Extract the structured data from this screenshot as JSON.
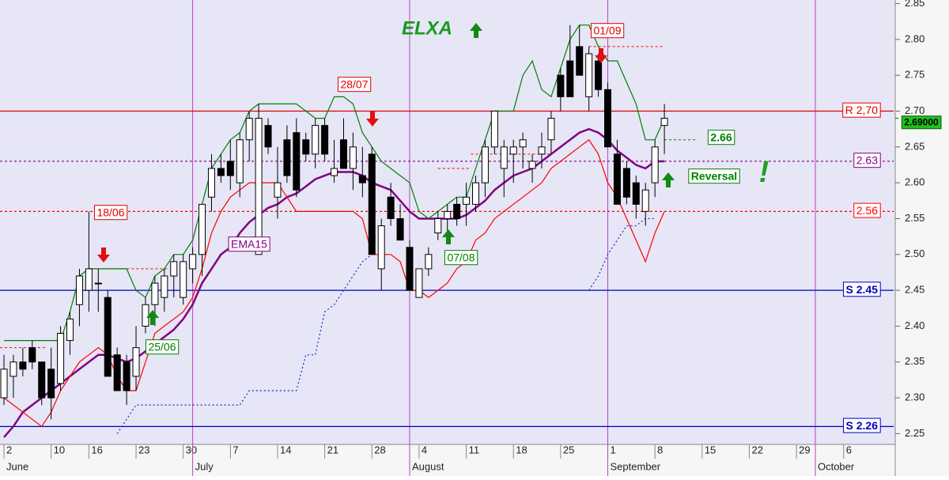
{
  "chart_data": {
    "type": "candlestick",
    "title": "ELXA",
    "xlim": [
      -0.42,
      94.3
    ],
    "ylim": [
      2.235,
      2.855
    ],
    "yticks": [
      2.25,
      {
        "value": 2.3,
        "label": "2.30"
      },
      2.35,
      {
        "value": 2.4,
        "label": "2.40"
      },
      2.45,
      {
        "value": 2.5,
        "label": "2.50"
      },
      2.55,
      {
        "value": 2.6,
        "label": "2.60"
      },
      2.65,
      {
        "value": 2.7,
        "label": "2.70"
      },
      2.75,
      {
        "value": 2.8,
        "label": "2.80"
      },
      2.85
    ],
    "xticks": [
      {
        "value": 0,
        "label": "2"
      },
      {
        "value": 5,
        "label": "10"
      },
      {
        "value": 9,
        "label": "16"
      },
      {
        "value": 14,
        "label": "23"
      },
      {
        "value": 19,
        "label": "30"
      },
      {
        "value": 24,
        "label": "7"
      },
      {
        "value": 29,
        "label": "14"
      },
      {
        "value": 34,
        "label": "21"
      },
      {
        "value": 39,
        "label": "28"
      },
      {
        "value": 44,
        "label": "4"
      },
      {
        "value": 49,
        "label": "11"
      },
      {
        "value": 54,
        "label": "18"
      },
      {
        "value": 59,
        "label": "25"
      },
      {
        "value": 64,
        "label": "1"
      },
      {
        "value": 69,
        "label": "8"
      },
      {
        "value": 74,
        "label": "15"
      },
      {
        "value": 79,
        "label": "22"
      },
      {
        "value": 84,
        "label": "29"
      },
      {
        "value": 89,
        "label": "6"
      }
    ],
    "months": [
      {
        "value": 0,
        "label": "June"
      },
      {
        "value": 20,
        "label": "July"
      },
      {
        "value": 43,
        "label": "August"
      },
      {
        "value": 64,
        "label": "September"
      },
      {
        "value": 86,
        "label": "October"
      }
    ],
    "open": [
      2.3,
      2.33,
      2.35,
      2.37,
      2.35,
      2.34,
      2.32,
      2.38,
      2.43,
      2.45,
      2.46,
      2.44,
      2.36,
      2.35,
      2.33,
      2.4,
      2.43,
      2.44,
      2.47,
      2.44,
      2.48,
      2.5,
      2.58,
      2.62,
      2.63,
      2.6,
      2.66,
      2.5,
      2.68,
      2.58,
      2.66,
      2.67,
      2.66,
      2.64,
      2.68,
      2.61,
      2.66,
      2.62,
      2.61,
      2.64,
      2.48,
      2.58,
      2.55,
      2.51,
      2.44,
      2.48,
      2.53,
      2.55,
      2.57,
      2.57,
      2.57,
      2.6,
      2.65,
      2.62,
      2.64,
      2.65,
      2.62,
      2.64,
      2.66,
      2.75,
      2.77,
      2.79,
      2.72,
      2.77,
      2.73,
      2.64,
      2.62,
      2.6,
      2.56,
      2.6,
      2.68
    ],
    "high": [
      2.36,
      2.36,
      2.37,
      2.38,
      2.35,
      2.37,
      2.4,
      2.42,
      2.48,
      2.56,
      2.48,
      2.45,
      2.37,
      2.36,
      2.4,
      2.44,
      2.47,
      2.48,
      2.5,
      2.5,
      2.51,
      2.57,
      2.64,
      2.64,
      2.66,
      2.67,
      2.7,
      2.71,
      2.69,
      2.65,
      2.68,
      2.69,
      2.67,
      2.69,
      2.69,
      2.66,
      2.69,
      2.67,
      2.65,
      2.65,
      2.55,
      2.6,
      2.57,
      2.52,
      2.48,
      2.51,
      2.56,
      2.57,
      2.58,
      2.6,
      2.61,
      2.66,
      2.7,
      2.66,
      2.66,
      2.67,
      2.64,
      2.67,
      2.7,
      2.76,
      2.82,
      2.82,
      2.79,
      2.78,
      2.74,
      2.66,
      2.63,
      2.61,
      2.6,
      2.66,
      2.71
    ],
    "low": [
      2.29,
      2.3,
      2.33,
      2.34,
      2.29,
      2.27,
      2.31,
      2.36,
      2.4,
      2.42,
      2.42,
      2.33,
      2.31,
      2.29,
      2.31,
      2.39,
      2.4,
      2.42,
      2.44,
      2.43,
      2.46,
      2.47,
      2.56,
      2.6,
      2.59,
      2.58,
      2.63,
      2.5,
      2.64,
      2.55,
      2.6,
      2.58,
      2.63,
      2.62,
      2.63,
      2.6,
      2.62,
      2.59,
      2.58,
      2.5,
      2.45,
      2.54,
      2.52,
      2.45,
      2.44,
      2.47,
      2.52,
      2.53,
      2.54,
      2.54,
      2.56,
      2.58,
      2.64,
      2.58,
      2.6,
      2.62,
      2.6,
      2.62,
      2.64,
      2.7,
      2.72,
      2.75,
      2.7,
      2.72,
      2.65,
      2.57,
      2.57,
      2.55,
      2.54,
      2.58,
      2.64
    ],
    "close": [
      2.34,
      2.35,
      2.34,
      2.35,
      2.3,
      2.3,
      2.39,
      2.41,
      2.47,
      2.48,
      2.46,
      2.33,
      2.31,
      2.31,
      2.37,
      2.43,
      2.46,
      2.47,
      2.49,
      2.49,
      2.5,
      2.57,
      2.62,
      2.61,
      2.61,
      2.66,
      2.69,
      2.69,
      2.65,
      2.6,
      2.61,
      2.59,
      2.64,
      2.68,
      2.64,
      2.62,
      2.62,
      2.65,
      2.6,
      2.5,
      2.54,
      2.55,
      2.52,
      2.45,
      2.48,
      2.5,
      2.55,
      2.56,
      2.55,
      2.58,
      2.6,
      2.65,
      2.7,
      2.65,
      2.65,
      2.66,
      2.63,
      2.65,
      2.69,
      2.72,
      2.72,
      2.75,
      2.78,
      2.73,
      2.65,
      2.57,
      2.58,
      2.57,
      2.59,
      2.65,
      2.69
    ],
    "series": [
      {
        "name": "EMA15",
        "color": "#800080",
        "values": [
          2.245,
          2.26,
          2.28,
          2.29,
          2.3,
          2.31,
          2.32,
          2.33,
          2.34,
          2.35,
          2.36,
          2.36,
          2.355,
          2.35,
          2.355,
          2.365,
          2.375,
          2.385,
          2.395,
          2.41,
          2.43,
          2.46,
          2.48,
          2.5,
          2.51,
          2.53,
          2.545,
          2.555,
          2.565,
          2.57,
          2.58,
          2.585,
          2.595,
          2.605,
          2.61,
          2.615,
          2.615,
          2.615,
          2.61,
          2.6,
          2.595,
          2.59,
          2.575,
          2.56,
          2.55,
          2.55,
          2.55,
          2.55,
          2.55,
          2.555,
          2.565,
          2.575,
          2.59,
          2.6,
          2.61,
          2.615,
          2.62,
          2.63,
          2.64,
          2.65,
          2.66,
          2.67,
          2.675,
          2.67,
          2.66,
          2.645,
          2.635,
          2.625,
          2.62,
          2.63,
          2.63
        ]
      },
      {
        "color": "#008000",
        "values": [
          2.38,
          2.38,
          2.38,
          2.38,
          2.38,
          2.38,
          2.38,
          2.42,
          2.47,
          2.48,
          2.48,
          2.48,
          2.48,
          2.48,
          2.45,
          2.44,
          2.47,
          2.48,
          2.5,
          2.5,
          2.52,
          2.57,
          2.62,
          2.64,
          2.66,
          2.67,
          2.7,
          2.71,
          2.71,
          2.71,
          2.71,
          2.71,
          2.7,
          2.69,
          2.69,
          2.72,
          2.72,
          2.71,
          2.67,
          2.65,
          2.63,
          2.62,
          2.61,
          2.6,
          2.56,
          2.55,
          2.56,
          2.57,
          2.58,
          2.58,
          2.62,
          2.66,
          2.7,
          2.7,
          2.7,
          2.75,
          2.77,
          2.73,
          2.72,
          2.76,
          2.8,
          2.82,
          2.82,
          2.79,
          2.77,
          2.77,
          2.74,
          2.71,
          2.66,
          2.66,
          2.69
        ]
      },
      {
        "color": "#ff0000",
        "values": [
          2.3,
          2.29,
          2.28,
          2.27,
          2.26,
          2.28,
          2.31,
          2.33,
          2.35,
          2.36,
          2.37,
          2.36,
          2.33,
          2.31,
          2.31,
          2.35,
          2.39,
          2.4,
          2.41,
          2.42,
          2.44,
          2.48,
          2.53,
          2.56,
          2.58,
          2.59,
          2.6,
          2.6,
          2.6,
          2.6,
          2.58,
          2.56,
          2.56,
          2.56,
          2.56,
          2.56,
          2.56,
          2.56,
          2.55,
          2.5,
          2.5,
          2.5,
          2.49,
          2.45,
          2.45,
          2.44,
          2.45,
          2.46,
          2.48,
          2.49,
          2.52,
          2.53,
          2.55,
          2.56,
          2.57,
          2.58,
          2.59,
          2.6,
          2.62,
          2.63,
          2.64,
          2.65,
          2.66,
          2.64,
          2.6,
          2.58,
          2.55,
          2.52,
          2.49,
          2.53,
          2.56
        ]
      },
      {
        "color": "#2020d0",
        "dashed": true,
        "values": [
          null,
          null,
          null,
          null,
          null,
          null,
          null,
          null,
          null,
          null,
          null,
          null,
          2.25,
          2.27,
          2.29,
          2.29,
          2.29,
          2.29,
          2.29,
          2.29,
          2.29,
          2.29,
          2.29,
          2.29,
          2.29,
          2.29,
          2.31,
          2.31,
          2.31,
          2.31,
          2.31,
          2.31,
          2.36,
          2.36,
          2.42,
          2.43,
          2.45,
          2.47,
          2.49,
          2.5,
          null,
          null,
          null,
          null,
          null,
          null,
          null,
          null,
          null,
          null,
          null,
          null,
          null,
          null,
          null,
          null,
          null,
          null,
          null,
          null,
          null,
          null,
          2.45,
          2.47,
          2.5,
          2.52,
          2.54,
          2.54,
          2.55,
          2.55,
          null
        ]
      }
    ],
    "levels": [
      {
        "label": "R 2,70",
        "value": 2.7,
        "color": "#e00000",
        "dashed": false
      },
      {
        "label": "2.63",
        "value": 2.63,
        "color": "#800080",
        "dashed": true
      },
      {
        "label": "2.56",
        "value": 2.56,
        "color": "#ff0000",
        "dashed": true
      },
      {
        "label": "S 2.45",
        "value": 2.45,
        "color": "#0000c0",
        "dashed": false
      },
      {
        "label": "S 2.26",
        "value": 2.26,
        "color": "#0000c0",
        "dashed": false
      }
    ],
    "segments": [
      {
        "value": 2.37,
        "from": -0.42,
        "to": 4.5,
        "color": "#ff0000"
      },
      {
        "value": 2.48,
        "from": 9,
        "to": 17.5,
        "color": "#ff0000"
      },
      {
        "value": 2.62,
        "from": 46,
        "to": 49.5,
        "color": "#ff0000"
      },
      {
        "value": 2.64,
        "from": 49.5,
        "to": 58,
        "color": "#ff0000"
      },
      {
        "value": 2.79,
        "from": 62,
        "to": 70,
        "color": "#ff0000"
      },
      {
        "value": 2.66,
        "from": 70,
        "to": 73.5,
        "color": "#008000"
      }
    ],
    "last_price": {
      "value": 2.69,
      "label": "2.69000"
    },
    "annotations": [
      {
        "text": "18/06",
        "color": "#e00000"
      },
      {
        "text": "25/06",
        "color": "#008000"
      },
      {
        "text": "28/07",
        "color": "#e00000"
      },
      {
        "text": "07/08",
        "color": "#008000"
      },
      {
        "text": "01/09",
        "color": "#e00000"
      },
      {
        "text": "2.66",
        "color": "#008000"
      },
      {
        "text": "Reversal",
        "color": "#008000"
      },
      {
        "text": "!",
        "color": "#20a020"
      }
    ]
  }
}
